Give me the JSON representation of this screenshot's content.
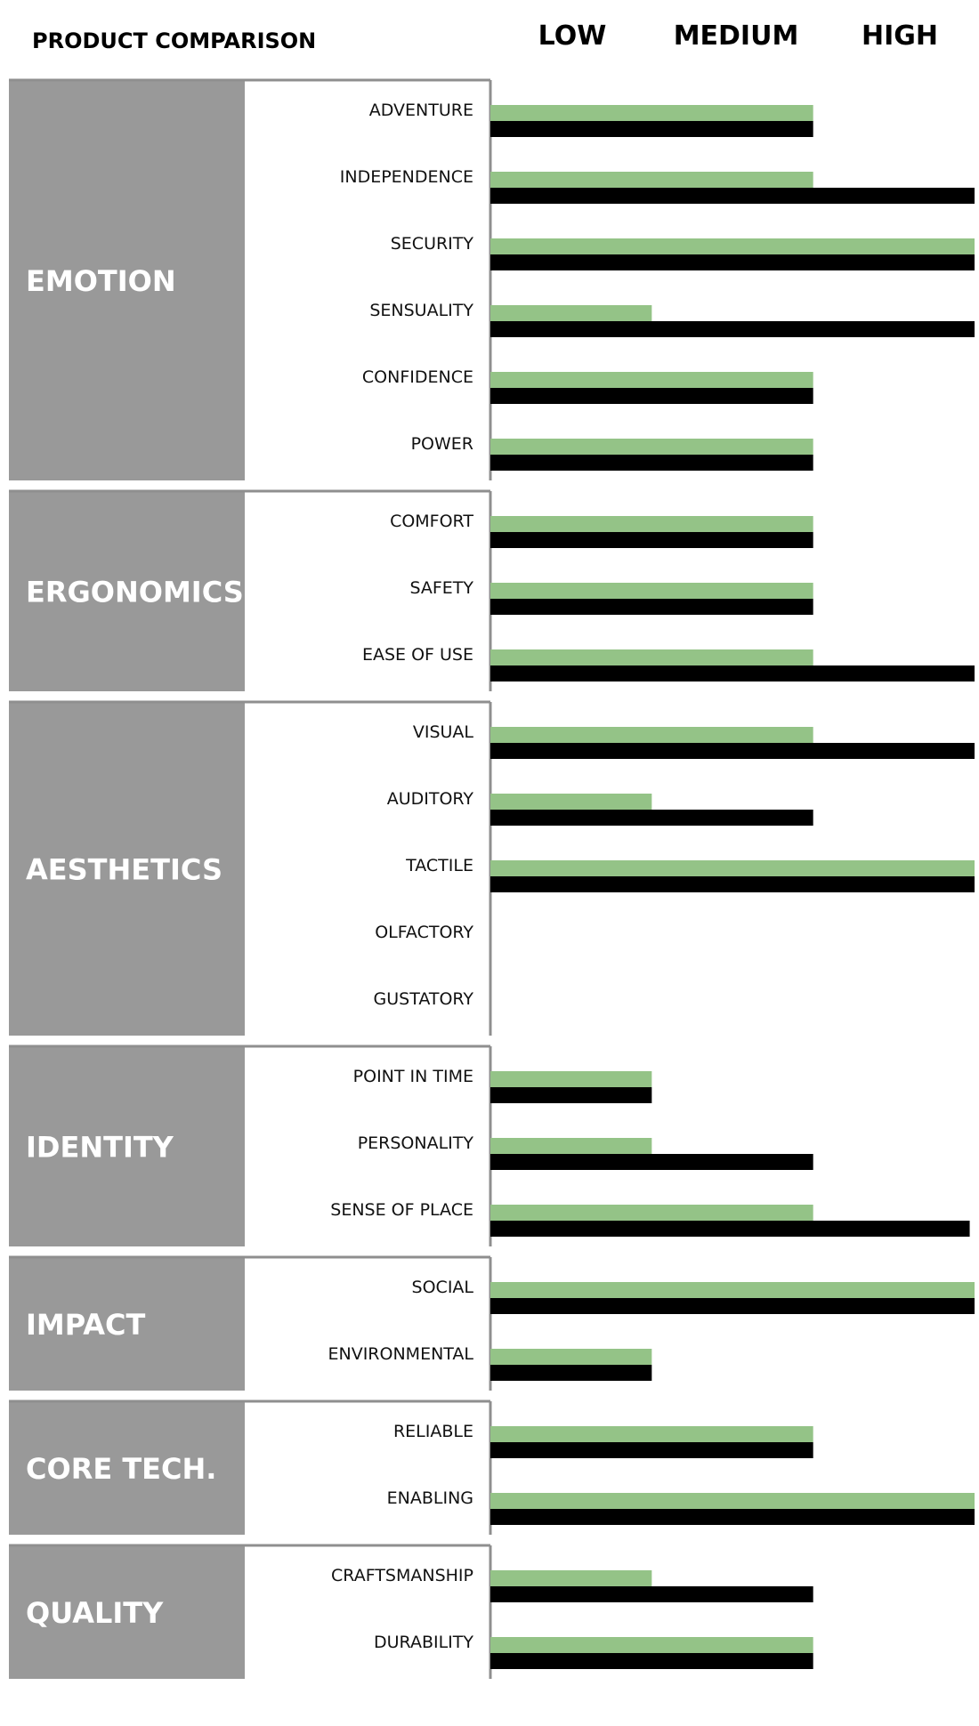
{
  "chart_data": {
    "type": "bar",
    "orientation": "horizontal",
    "title": "PRODUCT COMPARISON",
    "levels": [
      "LOW",
      "MEDIUM",
      "HIGH"
    ],
    "xlim": [
      0,
      3
    ],
    "groups": [
      {
        "name": "EMOTION",
        "items": [
          {
            "label": "ADVENTURE",
            "values": [
              2,
              2
            ]
          },
          {
            "label": "INDEPENDENCE",
            "values": [
              2,
              3
            ]
          },
          {
            "label": "SECURITY",
            "values": [
              3,
              3
            ]
          },
          {
            "label": "SENSUALITY",
            "values": [
              1,
              3
            ]
          },
          {
            "label": "CONFIDENCE",
            "values": [
              2,
              2
            ]
          },
          {
            "label": "POWER",
            "values": [
              2,
              2
            ]
          }
        ]
      },
      {
        "name": "ERGONOMICS",
        "items": [
          {
            "label": "COMFORT",
            "values": [
              2,
              2
            ]
          },
          {
            "label": "SAFETY",
            "values": [
              2,
              2
            ]
          },
          {
            "label": "EASE OF USE",
            "values": [
              2,
              3
            ]
          }
        ]
      },
      {
        "name": "AESTHETICS",
        "items": [
          {
            "label": "VISUAL",
            "values": [
              2,
              3
            ]
          },
          {
            "label": "AUDITORY",
            "values": [
              1,
              2
            ]
          },
          {
            "label": "TACTILE",
            "values": [
              3,
              3
            ]
          },
          {
            "label": "OLFACTORY",
            "values": [
              0,
              0
            ]
          },
          {
            "label": "GUSTATORY",
            "values": [
              0,
              0
            ]
          }
        ]
      },
      {
        "name": "IDENTITY",
        "items": [
          {
            "label": "POINT IN TIME",
            "values": [
              1,
              1
            ]
          },
          {
            "label": "PERSONALITY",
            "values": [
              1,
              2
            ]
          },
          {
            "label": "SENSE OF PLACE",
            "values": [
              2,
              2.97
            ]
          }
        ]
      },
      {
        "name": "IMPACT",
        "items": [
          {
            "label": "SOCIAL",
            "values": [
              3,
              3
            ]
          },
          {
            "label": "ENVIRONMENTAL",
            "values": [
              1,
              1
            ]
          }
        ]
      },
      {
        "name": "CORE TECH.",
        "items": [
          {
            "label": "RELIABLE",
            "values": [
              2,
              2
            ]
          },
          {
            "label": "ENABLING",
            "values": [
              3,
              3
            ]
          }
        ]
      },
      {
        "name": "QUALITY",
        "items": [
          {
            "label": "CRAFTSMANSHIP",
            "values": [
              1,
              2
            ]
          },
          {
            "label": "DURABILITY",
            "values": [
              2,
              2
            ]
          }
        ]
      }
    ],
    "series_colors": [
      "#94c387",
      "#000000"
    ],
    "category_fill": "#999999",
    "grid": false,
    "legend": "none"
  }
}
